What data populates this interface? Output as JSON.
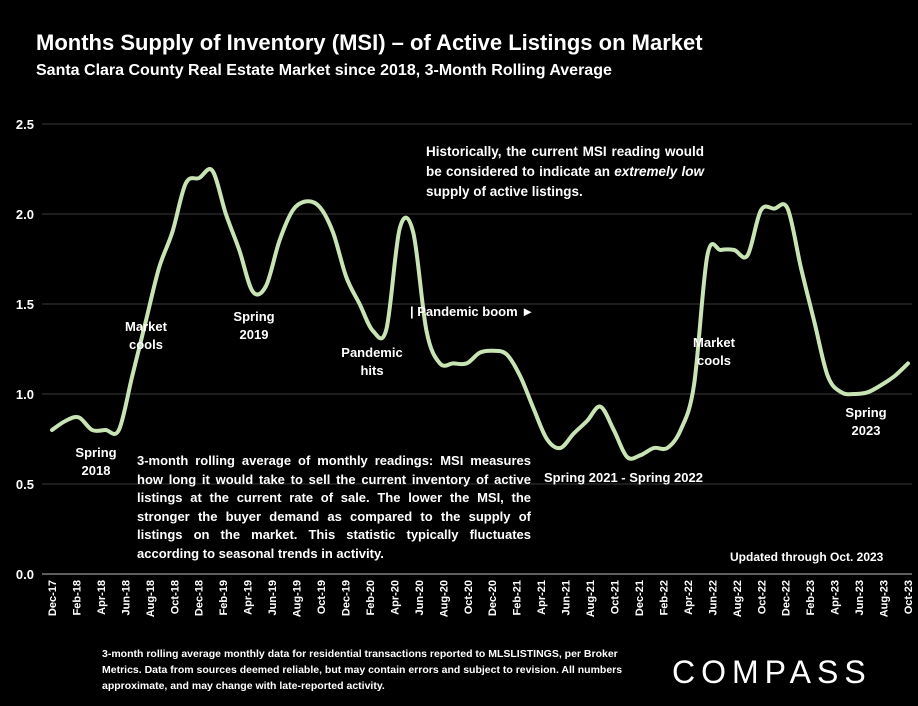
{
  "header": {
    "title": "Months Supply of Inventory (MSI) – of Active Listings on Market",
    "subtitle": "Santa Clara County Real Estate Market since 2018, 3-Month Rolling Average"
  },
  "colors": {
    "background": "#000000",
    "line": "#c9e4b4",
    "text": "#ffffff"
  },
  "chart_data": {
    "type": "line",
    "ylim": [
      0,
      2.5
    ],
    "yticks": [
      "0.0",
      "0.5",
      "1.0",
      "1.5",
      "2.0",
      "2.5"
    ],
    "x_tick_labels": [
      "Dec-17",
      "Feb-18",
      "Apr-18",
      "Jun-18",
      "Aug-18",
      "Oct-18",
      "Dec-18",
      "Feb-19",
      "Apr-19",
      "Jun-19",
      "Aug-19",
      "Oct-19",
      "Dec-19",
      "Feb-20",
      "Apr-20",
      "Jun-20",
      "Aug-20",
      "Oct-20",
      "Dec-20",
      "Feb-21",
      "Apr-21",
      "Jun-21",
      "Aug-21",
      "Oct-21",
      "Dec-21",
      "Feb-22",
      "Apr-22",
      "Jun-22",
      "Aug-22",
      "Oct-22",
      "Dec-22",
      "Feb-23",
      "Apr-23",
      "Jun-23",
      "Aug-23",
      "Oct-23"
    ],
    "series": [
      {
        "values": [
          0.8,
          0.85,
          0.87,
          0.8,
          0.8,
          0.8,
          1.1,
          1.4,
          1.7,
          1.9,
          2.17,
          2.2,
          2.24,
          2.0,
          1.8,
          1.57,
          1.6,
          1.85,
          2.02,
          2.07,
          2.04,
          1.9,
          1.65,
          1.5,
          1.35,
          1.36,
          1.92,
          1.9,
          1.35,
          1.17,
          1.17,
          1.17,
          1.23,
          1.24,
          1.22,
          1.1,
          0.92,
          0.75,
          0.7,
          0.78,
          0.85,
          0.93,
          0.8,
          0.65,
          0.66,
          0.7,
          0.7,
          0.8,
          1.05,
          1.77,
          1.8,
          1.8,
          1.77,
          2.02,
          2.03,
          2.03,
          1.7,
          1.4,
          1.1,
          1.01,
          1.0,
          1.01,
          1.05,
          1.1,
          1.17
        ]
      }
    ],
    "annotations": {
      "spring2018": "Spring 2018",
      "cools1": "Market cools",
      "spring2019": "Spring 2019",
      "pandemic_hits": "Pandemic hits",
      "pandemic_boom": "| Pandemic boom ►",
      "spring2021": "Spring 2021 - Spring 2022",
      "cools2": "Market cools",
      "spring2023": "Spring 2023",
      "historic_pre": "Historically, the current MSI reading would be considered to indicate an",
      "historic_em": "extremely low",
      "historic_post": "supply of active listings.",
      "description": "3-month rolling average of monthly readings: MSI measures how long it would take to sell the current inventory of active listings at the current rate of sale. The lower the MSI, the stronger the buyer demand as compared to the supply of listings on the market. This statistic typically fluctuates according to seasonal trends in activity.",
      "updated": "Updated through Oct. 2023"
    }
  },
  "footer": {
    "note": "3-month rolling average monthly data for residential transactions reported to MLSLISTINGS, per Broker Metrics. Data from sources deemed reliable, but may contain errors and subject to revision. All numbers approximate, and may change with late-reported activity.",
    "logo": "COMPASS"
  }
}
